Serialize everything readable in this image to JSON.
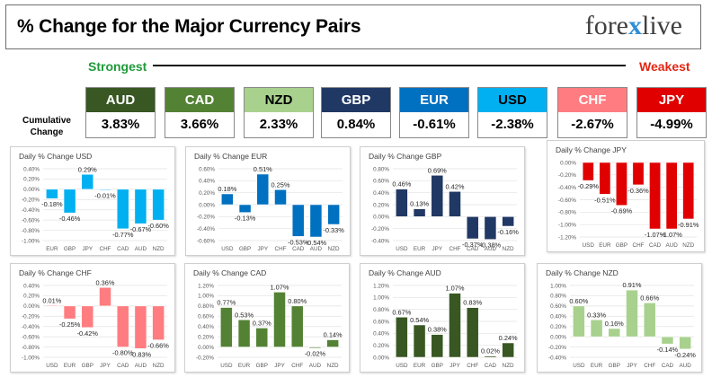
{
  "header": {
    "title": "% Change for the Major Currency Pairs",
    "logo_pre": "fore",
    "logo_x": "x",
    "logo_post": "live"
  },
  "scale": {
    "strongest": "Strongest",
    "weakest": "Weakest"
  },
  "cumulative_label_1": "Cumulative",
  "cumulative_label_2": "Change",
  "currencies": [
    {
      "code": "AUD",
      "value": "3.83%",
      "bg": "#385723",
      "fg": "#ffffff"
    },
    {
      "code": "CAD",
      "value": "3.66%",
      "bg": "#548235",
      "fg": "#ffffff"
    },
    {
      "code": "NZD",
      "value": "2.33%",
      "bg": "#a9d18e",
      "fg": "#000000"
    },
    {
      "code": "GBP",
      "value": "0.84%",
      "bg": "#203864",
      "fg": "#ffffff"
    },
    {
      "code": "EUR",
      "value": "-0.61%",
      "bg": "#0070c0",
      "fg": "#ffffff"
    },
    {
      "code": "USD",
      "value": "-2.38%",
      "bg": "#00b0f0",
      "fg": "#000000"
    },
    {
      "code": "CHF",
      "value": "-2.67%",
      "bg": "#ff7c80",
      "fg": "#ffffff"
    },
    {
      "code": "JPY",
      "value": "-4.99%",
      "bg": "#e00000",
      "fg": "#ffffff"
    }
  ],
  "chart_data": [
    {
      "type": "bar",
      "title": "Daily % Change USD",
      "categories": [
        "EUR",
        "GBP",
        "JPY",
        "CHF",
        "CAD",
        "AUD",
        "NZD"
      ],
      "values": [
        -0.18,
        -0.46,
        0.29,
        -0.01,
        -0.77,
        -0.67,
        -0.6
      ],
      "labels": [
        "-0.18%",
        "-0.46%",
        "0.29%",
        "-0.01%",
        "-0.77%",
        "-0.67%",
        "-0.60%"
      ],
      "ylim": [
        -1.0,
        0.4
      ],
      "ticks": [
        0.4,
        0.2,
        0.0,
        -0.2,
        -0.4,
        -0.6,
        -0.8,
        -1.0
      ],
      "tick_labels": [
        "0.40%",
        "0.20%",
        "0.00%",
        "-0.20%",
        "-0.40%",
        "-0.60%",
        "-0.80%",
        "-1.00%"
      ],
      "fill": "#00b0f0",
      "stroke": "#ffffff"
    },
    {
      "type": "bar",
      "title": "Daily % Change EUR",
      "categories": [
        "USD",
        "GBP",
        "JPY",
        "CHF",
        "CAD",
        "AUD",
        "NZD"
      ],
      "values": [
        0.18,
        -0.13,
        0.51,
        0.25,
        -0.53,
        -0.54,
        -0.33
      ],
      "labels": [
        "0.18%",
        "-0.13%",
        "0.51%",
        "0.25%",
        "-0.53%",
        "-0.54%",
        "-0.33%"
      ],
      "ylim": [
        -0.6,
        0.6
      ],
      "ticks": [
        0.6,
        0.4,
        0.2,
        0.0,
        -0.2,
        -0.4,
        -0.6
      ],
      "tick_labels": [
        "0.60%",
        "0.40%",
        "0.20%",
        "0.00%",
        "-0.20%",
        "-0.40%",
        "-0.60%"
      ],
      "fill": "#0070c0",
      "stroke": "#ffffff"
    },
    {
      "type": "bar",
      "title": "Daily % Change GBP",
      "categories": [
        "USD",
        "EUR",
        "JPY",
        "CHF",
        "CAD",
        "AUD",
        "NZD"
      ],
      "values": [
        0.46,
        0.13,
        0.69,
        0.42,
        -0.37,
        -0.38,
        -0.16
      ],
      "labels": [
        "0.46%",
        "0.13%",
        "0.69%",
        "0.42%",
        "-0.37%",
        "-0.38%",
        "-0.16%"
      ],
      "ylim": [
        -0.4,
        0.8
      ],
      "ticks": [
        0.8,
        0.6,
        0.4,
        0.2,
        0.0,
        -0.2,
        -0.4
      ],
      "tick_labels": [
        "0.80%",
        "0.60%",
        "0.40%",
        "0.20%",
        "0.00%",
        "-0.20%",
        "-0.40%"
      ],
      "fill": "#203864",
      "stroke": "#ffffff"
    },
    {
      "type": "bar",
      "title": "Daily % Change JPY",
      "categories": [
        "USD",
        "EUR",
        "GBP",
        "CHF",
        "CAD",
        "AUD",
        "NZD"
      ],
      "values": [
        -0.29,
        -0.51,
        -0.69,
        -0.36,
        -1.07,
        -1.07,
        -0.91
      ],
      "labels": [
        "-0.29%",
        "-0.51%",
        "-0.69%",
        "-0.36%",
        "-1.07%",
        "-1.07%",
        "-0.91%"
      ],
      "ylim": [
        -1.2,
        0.0
      ],
      "ticks": [
        0.0,
        -0.2,
        -0.4,
        -0.6,
        -0.8,
        -1.0,
        -1.2
      ],
      "tick_labels": [
        "0.00%",
        "-0.20%",
        "-0.40%",
        "-0.60%",
        "-0.80%",
        "-1.00%",
        "-1.20%"
      ],
      "fill": "#e00000",
      "stroke": "#ffffff"
    },
    {
      "type": "bar",
      "title": "Daily % Change CHF",
      "categories": [
        "USD",
        "EUR",
        "GBP",
        "JPY",
        "CAD",
        "AUD",
        "NZD"
      ],
      "values": [
        0.01,
        -0.25,
        -0.42,
        0.36,
        -0.8,
        -0.83,
        -0.66
      ],
      "labels": [
        "0.01%",
        "-0.25%",
        "-0.42%",
        "0.36%",
        "-0.80%",
        "-0.83%",
        "-0.66%"
      ],
      "ylim": [
        -1.0,
        0.4
      ],
      "ticks": [
        0.4,
        0.2,
        0.0,
        -0.2,
        -0.4,
        -0.6,
        -0.8,
        -1.0
      ],
      "tick_labels": [
        "0.40%",
        "0.20%",
        "0.00%",
        "-0.20%",
        "-0.40%",
        "-0.60%",
        "-0.80%",
        "-1.00%"
      ],
      "fill": "#ff7c80",
      "stroke": "#ffffff"
    },
    {
      "type": "bar",
      "title": "Daily % Change CAD",
      "categories": [
        "USD",
        "EUR",
        "GBP",
        "JPY",
        "CHF",
        "AUD",
        "NZD"
      ],
      "values": [
        0.77,
        0.53,
        0.37,
        1.07,
        0.8,
        -0.02,
        0.14
      ],
      "labels": [
        "0.77%",
        "0.53%",
        "0.37%",
        "1.07%",
        "0.80%",
        "-0.02%",
        "0.14%"
      ],
      "ylim": [
        -0.2,
        1.2
      ],
      "ticks": [
        1.2,
        1.0,
        0.8,
        0.6,
        0.4,
        0.2,
        0.0,
        -0.2
      ],
      "tick_labels": [
        "1.20%",
        "1.00%",
        "0.80%",
        "0.60%",
        "0.40%",
        "0.20%",
        "0.00%",
        "-0.20%"
      ],
      "fill": "#548235",
      "stroke": "#ffffff"
    },
    {
      "type": "bar",
      "title": "Daily % Change AUD",
      "categories": [
        "USD",
        "EUR",
        "GBP",
        "JPY",
        "CHF",
        "CAD",
        "NZD"
      ],
      "values": [
        0.67,
        0.54,
        0.38,
        1.07,
        0.83,
        0.02,
        0.24
      ],
      "labels": [
        "0.67%",
        "0.54%",
        "0.38%",
        "1.07%",
        "0.83%",
        "0.02%",
        "0.24%"
      ],
      "ylim": [
        0.0,
        1.2
      ],
      "ticks": [
        1.2,
        1.0,
        0.8,
        0.6,
        0.4,
        0.2,
        0.0
      ],
      "tick_labels": [
        "1.20%",
        "1.00%",
        "0.80%",
        "0.60%",
        "0.40%",
        "0.20%",
        "0.00%"
      ],
      "fill": "#385723",
      "stroke": "#ffffff"
    },
    {
      "type": "bar",
      "title": "Daily % Change NZD",
      "categories": [
        "USD",
        "EUR",
        "GBP",
        "JPY",
        "CHF",
        "CAD",
        "AUD"
      ],
      "values": [
        0.6,
        0.33,
        0.16,
        0.91,
        0.66,
        -0.14,
        -0.24
      ],
      "labels": [
        "0.60%",
        "0.33%",
        "0.16%",
        "0.91%",
        "0.66%",
        "-0.14%",
        "-0.24%"
      ],
      "ylim": [
        -0.4,
        1.0
      ],
      "ticks": [
        1.0,
        0.8,
        0.6,
        0.4,
        0.2,
        0.0,
        -0.2,
        -0.4
      ],
      "tick_labels": [
        "1.00%",
        "0.80%",
        "0.60%",
        "0.40%",
        "0.20%",
        "0.00%",
        "-0.20%",
        "-0.40%"
      ],
      "fill": "#a9d18e",
      "stroke": "#ffffff"
    }
  ]
}
